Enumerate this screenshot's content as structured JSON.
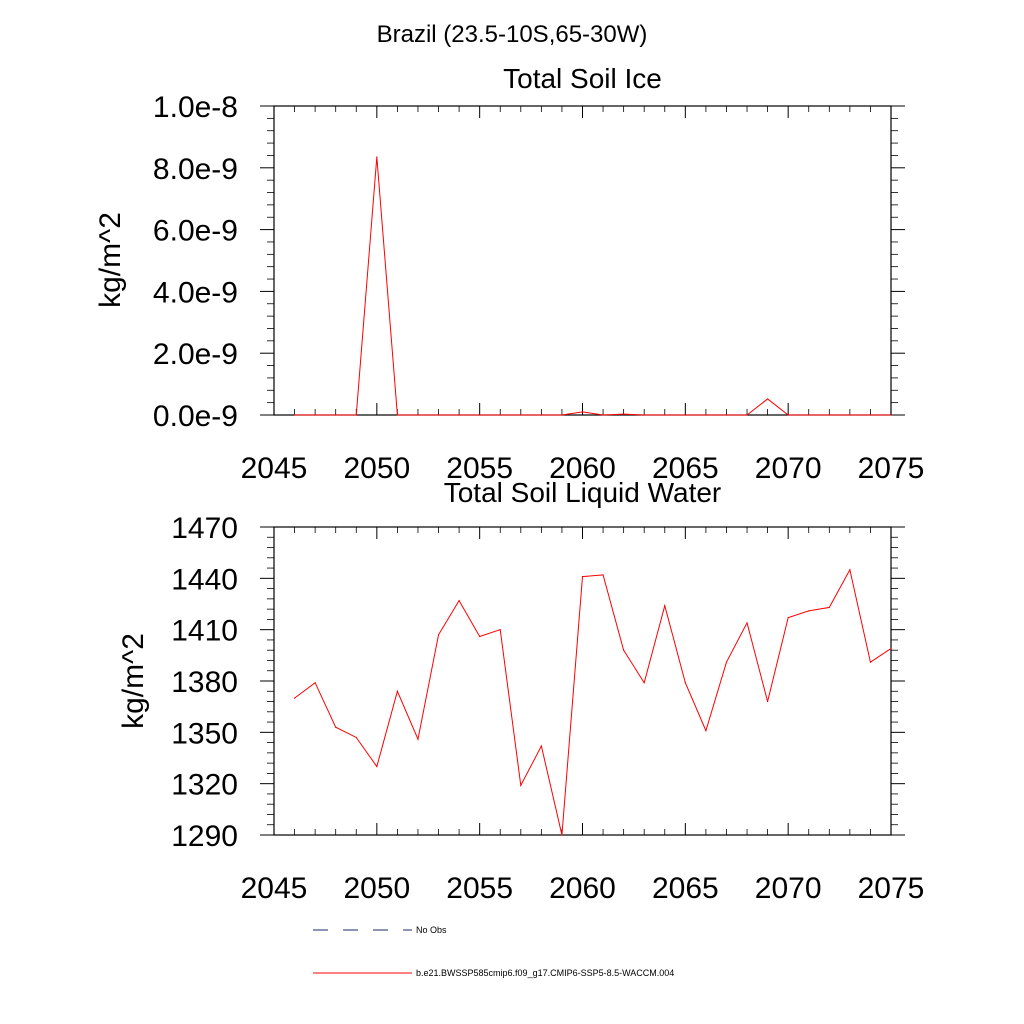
{
  "figure": {
    "title": "Brazil (23.5-10S,65-30W)"
  },
  "chart_data": [
    {
      "type": "line",
      "title": "Total Soil Ice",
      "ylabel": "kg/m^2",
      "xlabel": "",
      "xlim": [
        2045,
        2075
      ],
      "ylim": [
        0,
        1e-08
      ],
      "x_ticks": [
        2045,
        2050,
        2055,
        2060,
        2065,
        2070,
        2075
      ],
      "x_tick_labels": [
        "2045",
        "2050",
        "2055",
        "2060",
        "2065",
        "2070",
        "2075"
      ],
      "y_ticks": [
        0,
        2e-09,
        4e-09,
        6e-09,
        8e-09,
        1e-08
      ],
      "y_tick_labels": [
        "0.0e-9",
        "2.0e-9",
        "4.0e-9",
        "6.0e-9",
        "8.0e-9",
        "1.0e-8"
      ],
      "grid": false,
      "series": [
        {
          "name": "b.e21.BWSSP585cmip6.f09_g17.CMIP6-SSP5-8.5-WACCM.004",
          "color": "#ff0000",
          "x": [
            2046,
            2047,
            2048,
            2049,
            2050,
            2051,
            2052,
            2053,
            2054,
            2055,
            2056,
            2057,
            2058,
            2059,
            2060,
            2061,
            2062,
            2063,
            2064,
            2065,
            2066,
            2067,
            2068,
            2069,
            2070,
            2071,
            2072,
            2073,
            2074,
            2075
          ],
          "values": [
            0,
            0,
            0,
            0,
            8.35e-09,
            0,
            0,
            0,
            0,
            0,
            0,
            0,
            0,
            0,
            1e-10,
            0,
            3e-11,
            0,
            0,
            0,
            0,
            0,
            0,
            5.2e-10,
            0,
            0,
            0,
            0,
            0,
            0
          ]
        }
      ]
    },
    {
      "type": "line",
      "title": "Total Soil Liquid Water",
      "ylabel": "kg/m^2",
      "xlabel": "",
      "xlim": [
        2045,
        2075
      ],
      "ylim": [
        1290,
        1470
      ],
      "x_ticks": [
        2045,
        2050,
        2055,
        2060,
        2065,
        2070,
        2075
      ],
      "x_tick_labels": [
        "2045",
        "2050",
        "2055",
        "2060",
        "2065",
        "2070",
        "2075"
      ],
      "y_ticks": [
        1290,
        1320,
        1350,
        1380,
        1410,
        1440,
        1470
      ],
      "y_tick_labels": [
        "1290",
        "1320",
        "1350",
        "1380",
        "1410",
        "1440",
        "1470"
      ],
      "grid": false,
      "series": [
        {
          "name": "b.e21.BWSSP585cmip6.f09_g17.CMIP6-SSP5-8.5-WACCM.004",
          "color": "#ff0000",
          "x": [
            2046,
            2047,
            2048,
            2049,
            2050,
            2051,
            2052,
            2053,
            2054,
            2055,
            2056,
            2057,
            2058,
            2059,
            2060,
            2061,
            2062,
            2063,
            2064,
            2065,
            2066,
            2067,
            2068,
            2069,
            2070,
            2071,
            2072,
            2073,
            2074,
            2075
          ],
          "values": [
            1370,
            1379,
            1353,
            1347,
            1330,
            1374,
            1346,
            1407,
            1427,
            1406,
            1410,
            1319,
            1342,
            1290,
            1441,
            1442,
            1398,
            1379,
            1424,
            1379,
            1351,
            1391,
            1414,
            1368,
            1417,
            1421,
            1423,
            1445,
            1391,
            1399
          ]
        }
      ]
    }
  ],
  "legend": {
    "placement": "bottom",
    "entries": [
      {
        "label": "No Obs",
        "color": "#1f2a6b",
        "style": "dashed"
      },
      {
        "label": "b.e21.BWSSP585cmip6.f09_g17.CMIP6-SSP5-8.5-WACCM.004",
        "color": "#ff0000",
        "style": "solid"
      }
    ]
  }
}
